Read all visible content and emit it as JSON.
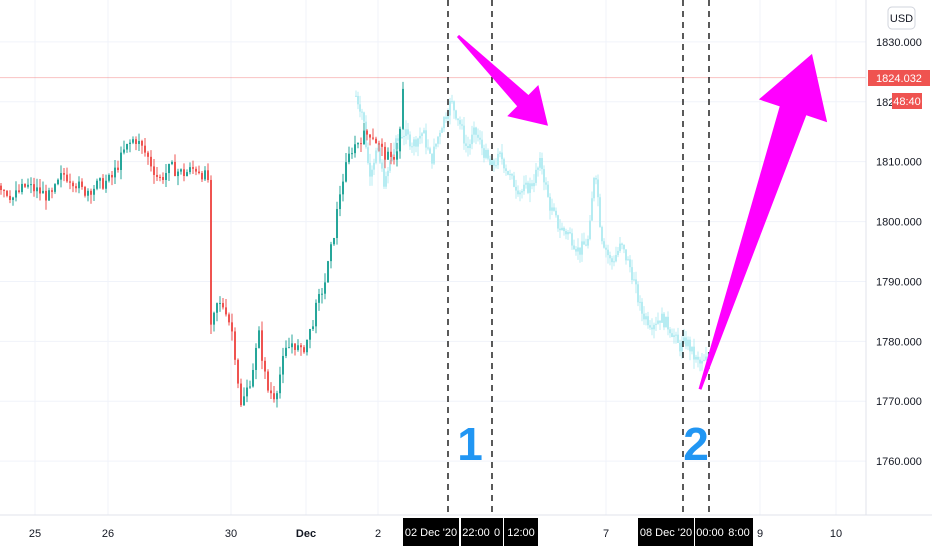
{
  "currency_button": "USD",
  "price_tag": {
    "price": "1824.032",
    "countdown": "48:40",
    "color": "#ef5350"
  },
  "colors": {
    "up": "#26a69a",
    "down": "#ef5350",
    "projection": "#b2ebf2",
    "arrow": "#ff00ff",
    "grid": "#f0f3fa",
    "zone_line": "#000000",
    "label": "#2196f3"
  },
  "chart_data": {
    "type": "candlestick",
    "y_axis": {
      "range": [
        1751,
        1837
      ],
      "ticks": [
        "1830.000",
        "1820.000",
        "1810.000",
        "1800.000",
        "1790.000",
        "1780.000",
        "1770.000",
        "1760.000"
      ],
      "tick_values": [
        1830,
        1820,
        1810,
        1800,
        1790,
        1780,
        1770,
        1760
      ]
    },
    "x_axis": {
      "ticks": [
        "25",
        "26",
        "30",
        "Dec",
        "2",
        "7",
        "9",
        "10"
      ],
      "tick_index": [
        35,
        108,
        231,
        306,
        378,
        606,
        760,
        836
      ]
    },
    "time_tags": [
      "02 Dec '20",
      "22:00",
      "0",
      "12:00",
      "08 Dec '20",
      "00:00",
      "8:00"
    ],
    "current_price": 1824.032,
    "path_points": [
      [
        0,
        1806
      ],
      [
        12,
        1804
      ],
      [
        25,
        1806
      ],
      [
        38,
        1805
      ],
      [
        50,
        1804
      ],
      [
        62,
        1808
      ],
      [
        72,
        1807
      ],
      [
        82,
        1805
      ],
      [
        96,
        1806
      ],
      [
        110,
        1807
      ],
      [
        124,
        1812
      ],
      [
        134,
        1814
      ],
      [
        146,
        1811
      ],
      [
        158,
        1807
      ],
      [
        170,
        1809
      ],
      [
        182,
        1808
      ],
      [
        196,
        1809
      ],
      [
        207,
        1807
      ],
      [
        209,
        1781
      ],
      [
        216,
        1786
      ],
      [
        224,
        1786
      ],
      [
        232,
        1781
      ],
      [
        240,
        1769
      ],
      [
        250,
        1774
      ],
      [
        258,
        1781
      ],
      [
        266,
        1772
      ],
      [
        274,
        1771
      ],
      [
        284,
        1778
      ],
      [
        292,
        1780
      ],
      [
        300,
        1778
      ],
      [
        308,
        1781
      ],
      [
        316,
        1786
      ],
      [
        324,
        1790
      ],
      [
        332,
        1797
      ],
      [
        340,
        1806
      ],
      [
        350,
        1812
      ],
      [
        360,
        1814
      ],
      [
        370,
        1815
      ],
      [
        380,
        1812
      ],
      [
        390,
        1810
      ],
      [
        398,
        1813
      ],
      [
        403,
        1824
      ]
    ],
    "projection_points": [
      [
        355,
        1821
      ],
      [
        362,
        1818
      ],
      [
        368,
        1808
      ],
      [
        376,
        1812
      ],
      [
        384,
        1806
      ],
      [
        392,
        1812
      ],
      [
        402,
        1815
      ],
      [
        412,
        1813
      ],
      [
        422,
        1815
      ],
      [
        430,
        1810
      ],
      [
        440,
        1816
      ],
      [
        450,
        1820
      ],
      [
        458,
        1817
      ],
      [
        466,
        1812
      ],
      [
        474,
        1815
      ],
      [
        482,
        1812
      ],
      [
        490,
        1809
      ],
      [
        500,
        1811
      ],
      [
        510,
        1807
      ],
      [
        520,
        1805
      ],
      [
        530,
        1806
      ],
      [
        540,
        1810
      ],
      [
        548,
        1803
      ],
      [
        558,
        1799
      ],
      [
        568,
        1798
      ],
      [
        578,
        1795
      ],
      [
        588,
        1797
      ],
      [
        594,
        1810
      ],
      [
        600,
        1798
      ],
      [
        610,
        1793
      ],
      [
        620,
        1796
      ],
      [
        630,
        1792
      ],
      [
        640,
        1785
      ],
      [
        650,
        1783
      ],
      [
        660,
        1784
      ],
      [
        670,
        1782
      ],
      [
        678,
        1779
      ],
      [
        686,
        1780
      ],
      [
        694,
        1777
      ],
      [
        700,
        1776
      ],
      [
        706,
        1777
      ],
      [
        712,
        1779
      ]
    ],
    "zones": [
      {
        "label": "1",
        "x_index": [
          448,
          492
        ]
      },
      {
        "label": "2",
        "x_index": [
          683,
          709
        ]
      }
    ],
    "annotations": [
      {
        "type": "arrow",
        "direction": "down",
        "from": [
          458,
          1831
        ],
        "to": [
          548,
          1816
        ]
      },
      {
        "type": "arrow",
        "direction": "up",
        "from": [
          700,
          1772
        ],
        "to": [
          812,
          1828
        ]
      }
    ],
    "grid": true
  }
}
